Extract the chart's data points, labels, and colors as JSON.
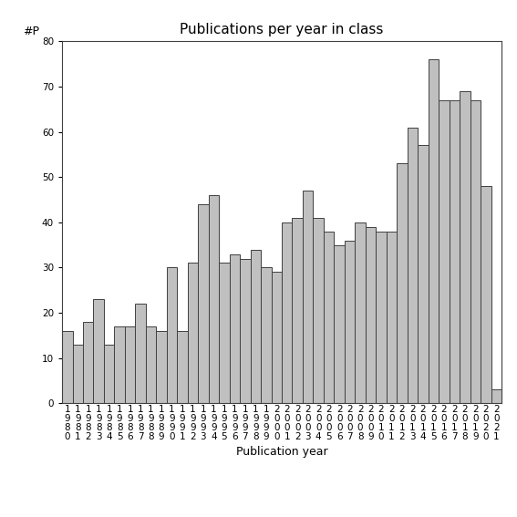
{
  "title": "Publications per year in class",
  "xlabel": "Publication year",
  "ylabel": "#P",
  "years": [
    "1980",
    "1981",
    "1982",
    "1983",
    "1984",
    "1985",
    "1986",
    "1987",
    "1988",
    "1989",
    "1990",
    "1991",
    "1992",
    "1993",
    "1994",
    "1995",
    "1996",
    "1997",
    "1998",
    "1999",
    "2000",
    "2001",
    "2002",
    "2003",
    "2004",
    "2005",
    "2006",
    "2007",
    "2008",
    "2009",
    "2010",
    "2011",
    "2012",
    "2013",
    "2014",
    "2015",
    "2016",
    "2017",
    "2018",
    "2019",
    "2020",
    "2021"
  ],
  "values": [
    16,
    13,
    18,
    23,
    13,
    17,
    17,
    22,
    17,
    16,
    30,
    16,
    31,
    44,
    46,
    31,
    33,
    32,
    34,
    30,
    29,
    40,
    41,
    47,
    41,
    38,
    35,
    36,
    40,
    39,
    38,
    38,
    53,
    61,
    57,
    76,
    67,
    67,
    69,
    67,
    48,
    3
  ],
  "bar_color": "#c0c0c0",
  "bar_edgecolor": "#404040",
  "ylim": [
    0,
    80
  ],
  "yticks": [
    0,
    10,
    20,
    30,
    40,
    50,
    60,
    70,
    80
  ],
  "background_color": "#ffffff",
  "title_fontsize": 11,
  "label_fontsize": 9,
  "tick_fontsize": 7.5
}
